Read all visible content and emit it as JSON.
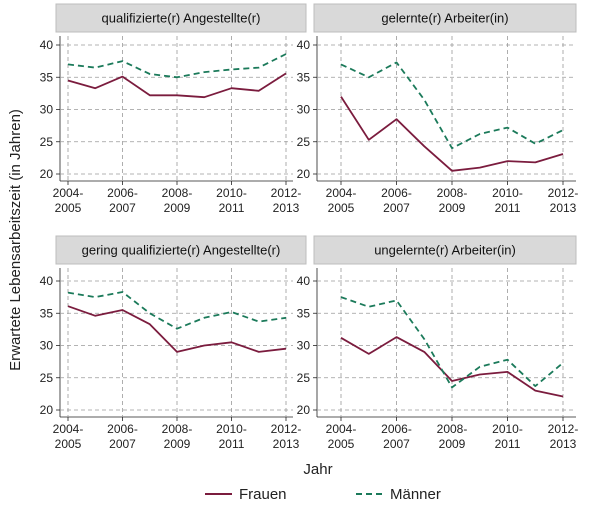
{
  "chart_data": {
    "type": "line",
    "xlabel": "Jahr",
    "ylabel": "Erwartete Lebensarbeitszeit (in Jahren)",
    "x": [
      2004.5,
      2005.5,
      2006.5,
      2007.5,
      2008.5,
      2009.5,
      2010.5,
      2011.5,
      2012.5
    ],
    "x_ticks": [
      {
        "x": 2004.5,
        "line1": "2004-",
        "line2": "2005"
      },
      {
        "x": 2006.5,
        "line1": "2006-",
        "line2": "2007"
      },
      {
        "x": 2008.5,
        "line1": "2008-",
        "line2": "2009"
      },
      {
        "x": 2010.5,
        "line1": "2010-",
        "line2": "2011"
      },
      {
        "x": 2012.5,
        "line1": "2012-",
        "line2": "2013"
      }
    ],
    "y_ticks": [
      20,
      25,
      30,
      35,
      40
    ],
    "ylim": [
      19,
      41
    ],
    "legend": {
      "position": "bottom",
      "entries": [
        {
          "name": "Frauen",
          "color": "#7b1c3e",
          "style": "solid"
        },
        {
          "name": "Männer",
          "color": "#1b7a5a",
          "style": "dashed"
        }
      ]
    },
    "panels": [
      {
        "title": "qualifizierte(r) Angestellte(r)",
        "series": [
          {
            "name": "Frauen",
            "values": [
              34.5,
              33.3,
              35.1,
              32.2,
              32.2,
              31.9,
              33.3,
              32.9,
              35.6
            ]
          },
          {
            "name": "Männer",
            "values": [
              37.0,
              36.5,
              37.5,
              35.5,
              35.0,
              35.8,
              36.2,
              36.5,
              38.6
            ]
          }
        ]
      },
      {
        "title": "gelernte(r) Arbeiter(in)",
        "series": [
          {
            "name": "Frauen",
            "values": [
              32.0,
              25.3,
              28.5,
              24.3,
              20.5,
              21.0,
              22.0,
              21.8,
              23.1
            ]
          },
          {
            "name": "Männer",
            "values": [
              37.0,
              35.0,
              37.3,
              31.5,
              24.0,
              26.2,
              27.2,
              24.7,
              26.8
            ]
          }
        ]
      },
      {
        "title": "gering qualifizierte(r) Angestellte(r)",
        "series": [
          {
            "name": "Frauen",
            "values": [
              36.1,
              34.6,
              35.5,
              33.3,
              29.0,
              30.0,
              30.5,
              29.0,
              29.5
            ]
          },
          {
            "name": "Männer",
            "values": [
              38.2,
              37.5,
              38.3,
              35.0,
              32.6,
              34.3,
              35.2,
              33.7,
              34.3
            ]
          }
        ]
      },
      {
        "title": "ungelernte(r) Arbeiter(in)",
        "series": [
          {
            "name": "Frauen",
            "values": [
              31.2,
              28.7,
              31.3,
              29.0,
              24.5,
              25.5,
              25.9,
              23.0,
              22.1
            ]
          },
          {
            "name": "Männer",
            "values": [
              37.5,
              36.0,
              37.0,
              31.0,
              23.5,
              26.7,
              27.8,
              23.7,
              27.3
            ]
          }
        ]
      }
    ]
  }
}
